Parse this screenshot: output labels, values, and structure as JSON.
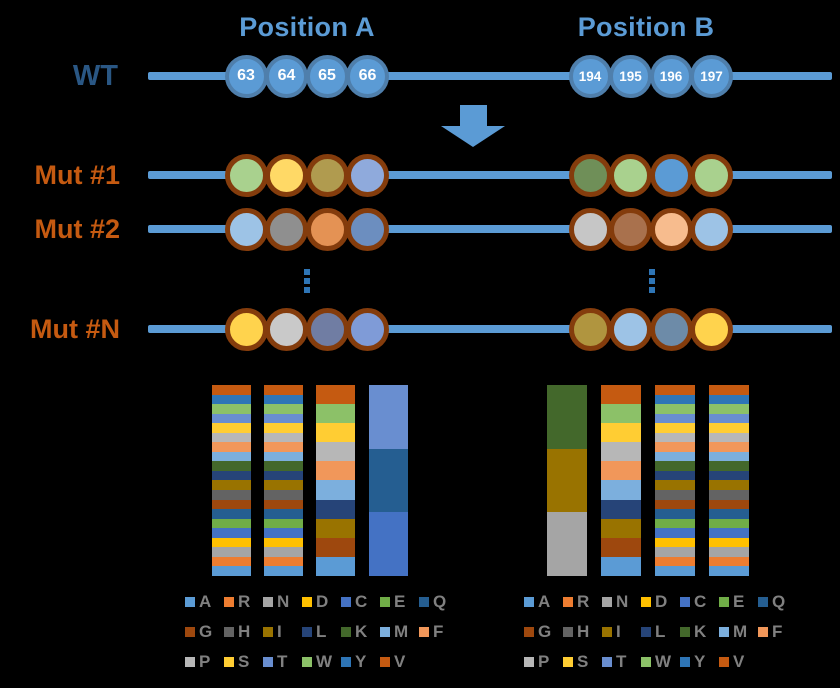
{
  "figure": {
    "background": "#000000",
    "accent_blue": "#5B9BD5",
    "position_a_title": "Position A",
    "position_b_title": "Position B"
  },
  "schematic": {
    "wt": {
      "label": "WT",
      "label_color": "#2A5784",
      "backbone_color": "#5B9BD5",
      "circle_fill": "#5B9BD5",
      "circle_ring": "#4F7FAC",
      "number_color": "#FFFFFF",
      "a_residues": [
        "63",
        "64",
        "65",
        "66"
      ],
      "b_residues": [
        "194",
        "195",
        "196",
        "197"
      ]
    },
    "arrow_color": "#5B9BD5",
    "mutant_label_color": "#C55A11",
    "mutant_ring_color": "#843C0C",
    "ellipsis_color": "#2E75B6",
    "mutants": [
      {
        "label": "Mut #1",
        "a_colors": [
          "#A9D18E",
          "#FFD966",
          "#B09B4F",
          "#8FAADC"
        ],
        "b_colors": [
          "#6F8F58",
          "#A9D18E",
          "#5B9BD5",
          "#A9D18E"
        ]
      },
      {
        "label": "Mut #2",
        "a_colors": [
          "#9DC3E6",
          "#8F8F8F",
          "#E49254",
          "#6C8EBF"
        ],
        "b_colors": [
          "#C6C6C6",
          "#A9714D",
          "#F7BC8E",
          "#9DC3E6"
        ]
      },
      {
        "label": "Mut #N",
        "a_colors": [
          "#FFD34D",
          "#C9C9C9",
          "#707DA3",
          "#7F9BD7"
        ],
        "b_colors": [
          "#B0953F",
          "#9DC3E6",
          "#6D8BA8",
          "#FFD34D"
        ]
      }
    ]
  },
  "palette": {
    "A": "#5B9BD5",
    "R": "#ED7D31",
    "N": "#A5A5A5",
    "D": "#FFC000",
    "C": "#4472C4",
    "E": "#70AD47",
    "Q": "#255E91",
    "G": "#9E480E",
    "H": "#636363",
    "I": "#997300",
    "L": "#264478",
    "K": "#43682B",
    "M": "#7CAFDD",
    "F": "#F1975A",
    "P": "#B7B7B7",
    "S": "#FFCD33",
    "T": "#698ED0",
    "W": "#8CC168",
    "Y": "#2E75B6",
    "V": "#C55A11"
  },
  "chart_data": [
    {
      "type": "bar",
      "stacked": true,
      "title": "Position A",
      "grid": false,
      "axes": false,
      "segment_sizing": "equal",
      "bars": [
        {
          "segments_top_to_bottom": [
            "V",
            "Y",
            "W",
            "T",
            "S",
            "P",
            "F",
            "M",
            "K",
            "L",
            "I",
            "H",
            "G",
            "Q",
            "E",
            "C",
            "D",
            "N",
            "R",
            "A"
          ]
        },
        {
          "segments_top_to_bottom": [
            "V",
            "Y",
            "W",
            "T",
            "S",
            "P",
            "F",
            "M",
            "K",
            "L",
            "I",
            "H",
            "G",
            "Q",
            "E",
            "C",
            "D",
            "N",
            "R",
            "A"
          ]
        },
        {
          "segments_top_to_bottom": [
            "V",
            "W",
            "S",
            "P",
            "F",
            "M",
            "L",
            "I",
            "G",
            "A"
          ]
        },
        {
          "segments_top_to_bottom": [
            "T",
            "Q",
            "C"
          ]
        }
      ]
    },
    {
      "type": "bar",
      "stacked": true,
      "title": "Position B",
      "grid": false,
      "axes": false,
      "segment_sizing": "equal",
      "bars": [
        {
          "segments_top_to_bottom": [
            "K",
            "I",
            "N"
          ]
        },
        {
          "segments_top_to_bottom": [
            "V",
            "W",
            "S",
            "P",
            "F",
            "M",
            "L",
            "I",
            "G",
            "A"
          ]
        },
        {
          "segments_top_to_bottom": [
            "V",
            "Y",
            "W",
            "T",
            "S",
            "P",
            "F",
            "M",
            "K",
            "L",
            "I",
            "H",
            "G",
            "Q",
            "E",
            "C",
            "D",
            "N",
            "R",
            "A"
          ]
        },
        {
          "segments_top_to_bottom": [
            "V",
            "Y",
            "W",
            "T",
            "S",
            "P",
            "F",
            "M",
            "K",
            "L",
            "I",
            "H",
            "G",
            "Q",
            "E",
            "C",
            "D",
            "N",
            "R",
            "A"
          ]
        }
      ]
    }
  ],
  "legend": {
    "letter_color": "#808080",
    "rows": [
      [
        "A",
        "R",
        "N",
        "D",
        "C",
        "E",
        "Q"
      ],
      [
        "G",
        "H",
        "I",
        "L",
        "K",
        "M",
        "F"
      ],
      [
        "P",
        "S",
        "T",
        "W",
        "Y",
        "V"
      ]
    ]
  }
}
